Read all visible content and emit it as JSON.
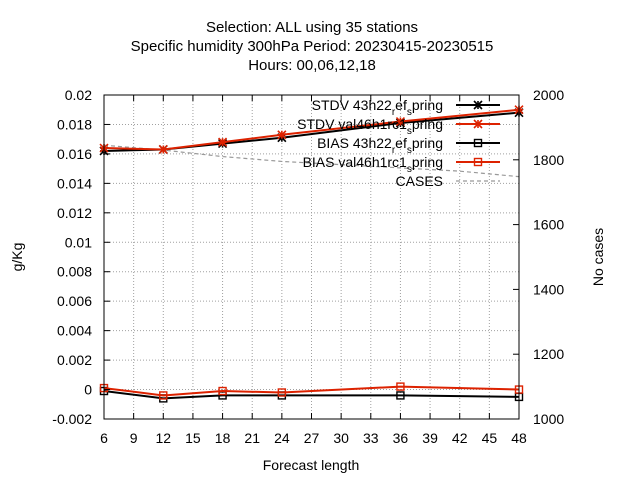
{
  "chart_data": {
    "type": "line",
    "title_lines": [
      "Selection: ALL using    35 stations",
      "Specific humidity 300hPa   Period: 20230415-20230515",
      "Hours:  00,06,12,18"
    ],
    "xlabel": "Forecast length",
    "ylabel": "g/Kg",
    "y2label": "No cases",
    "xlim": [
      6,
      48
    ],
    "ylim": [
      -0.002,
      0.02
    ],
    "y2lim": [
      1000,
      2000
    ],
    "xticks": [
      6,
      9,
      12,
      15,
      18,
      21,
      24,
      27,
      30,
      33,
      36,
      39,
      42,
      45,
      48
    ],
    "yticks": [
      "-0.002",
      "0",
      "0.002",
      "0.004",
      "0.006",
      "0.008",
      "0.01",
      "0.012",
      "0.014",
      "0.016",
      "0.018",
      "0.02"
    ],
    "y2ticks": [
      "1000",
      "1200",
      "1400",
      "1600",
      "1800",
      "2000"
    ],
    "grid": true,
    "legend_position": "top-right",
    "series": [
      {
        "name": "STDV 43h22_ref_spring",
        "legend_parts": [
          "STDV 43h22",
          "r",
          "ef",
          "s",
          "pring"
        ],
        "color": "#000000",
        "marker": "star",
        "axis": "y",
        "x": [
          6,
          12,
          18,
          24,
          36,
          48
        ],
        "y": [
          0.0162,
          0.0163,
          0.0167,
          0.0171,
          0.0181,
          0.0188
        ]
      },
      {
        "name": "STDV val46h1rc1_spring",
        "legend_parts": [
          "STDV val46h1rc1",
          "s",
          "pring"
        ],
        "color": "#dd2200",
        "marker": "star",
        "axis": "y",
        "x": [
          6,
          12,
          18,
          24,
          36,
          48
        ],
        "y": [
          0.0164,
          0.0163,
          0.0168,
          0.0173,
          0.0182,
          0.019
        ]
      },
      {
        "name": "BIAS 43h22_ref_spring",
        "legend_parts": [
          "BIAS 43h22",
          "r",
          "ef",
          "s",
          "pring"
        ],
        "color": "#000000",
        "marker": "square",
        "axis": "y",
        "x": [
          6,
          12,
          18,
          24,
          36,
          48
        ],
        "y": [
          -0.0001,
          -0.0006,
          -0.0004,
          -0.0004,
          -0.0004,
          -0.0005
        ]
      },
      {
        "name": "BIAS val46h1rc1_spring",
        "legend_parts": [
          "BIAS val46h1rc1",
          "s",
          "pring"
        ],
        "color": "#dd2200",
        "marker": "square",
        "axis": "y",
        "x": [
          6,
          12,
          18,
          24,
          36,
          48
        ],
        "y": [
          0.0001,
          -0.0004,
          -0.0001,
          -0.0002,
          0.0002,
          0.0
        ]
      },
      {
        "name": "CASES",
        "legend_parts": [
          "CASES"
        ],
        "color": "#999999",
        "marker": "none",
        "dashed": true,
        "axis": "y2",
        "x": [
          6,
          12,
          18,
          24,
          30,
          36,
          42,
          48
        ],
        "y": [
          1845,
          1830,
          1810,
          1795,
          1785,
          1775,
          1765,
          1748
        ]
      }
    ]
  }
}
